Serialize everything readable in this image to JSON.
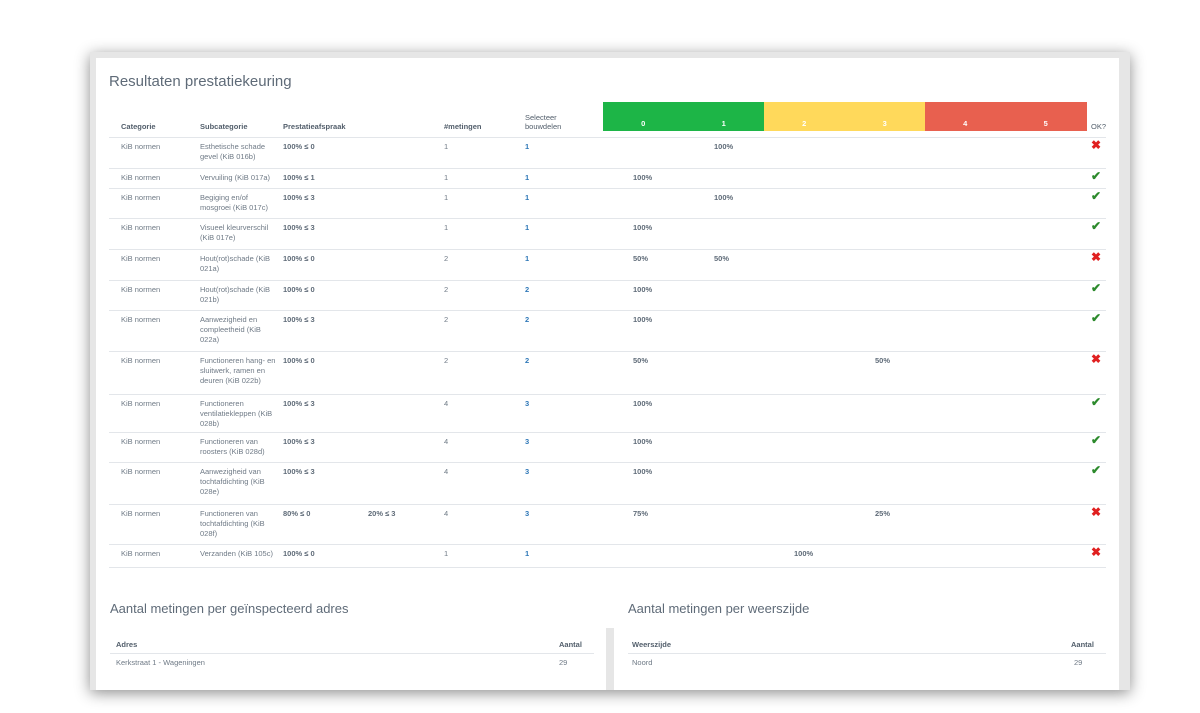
{
  "main": {
    "title": "Resultaten prestatiekeuring",
    "headers": {
      "categorie": "Categorie",
      "subcategorie": "Subcategorie",
      "prestatieafspraak": "Prestatieafspraak",
      "metingen": "#metingen",
      "selecteer_1": "Selecteer",
      "selecteer_2": "bouwdelen",
      "ok": "OK?"
    },
    "scores": [
      {
        "label": "0",
        "color": "#1db547"
      },
      {
        "label": "1",
        "color": "#1db547"
      },
      {
        "label": "2",
        "color": "#ffd95b"
      },
      {
        "label": "3",
        "color": "#ffd95b"
      },
      {
        "label": "4",
        "color": "#e8604f"
      },
      {
        "label": "5",
        "color": "#e8604f"
      }
    ],
    "rows": [
      {
        "categorie": "KiB normen",
        "subcategorie": "Esthetische schade gevel (KiB 016b)",
        "afspraak_1": "100% ≤ 0",
        "afspraak_2": "",
        "metingen": "1",
        "bouwdelen": "1",
        "pct": [
          "",
          "100%",
          "",
          "",
          "",
          ""
        ],
        "ok": false
      },
      {
        "categorie": "KiB normen",
        "subcategorie": "Vervuiling (KiB 017a)",
        "afspraak_1": "100% ≤ 1",
        "afspraak_2": "",
        "metingen": "1",
        "bouwdelen": "1",
        "pct": [
          "100%",
          "",
          "",
          "",
          "",
          ""
        ],
        "ok": true
      },
      {
        "categorie": "KiB normen",
        "subcategorie": "Begiging en/of mosgroei (KiB 017c)",
        "afspraak_1": "100% ≤ 3",
        "afspraak_2": "",
        "metingen": "1",
        "bouwdelen": "1",
        "pct": [
          "",
          "100%",
          "",
          "",
          "",
          ""
        ],
        "ok": true
      },
      {
        "categorie": "KiB normen",
        "subcategorie": "Visueel kleurverschil (KiB 017e)",
        "afspraak_1": "100% ≤ 3",
        "afspraak_2": "",
        "metingen": "1",
        "bouwdelen": "1",
        "pct": [
          "100%",
          "",
          "",
          "",
          "",
          ""
        ],
        "ok": true
      },
      {
        "categorie": "KiB normen",
        "subcategorie": "Hout(rot)schade (KiB 021a)",
        "afspraak_1": "100% ≤ 0",
        "afspraak_2": "",
        "metingen": "2",
        "bouwdelen": "1",
        "pct": [
          "50%",
          "50%",
          "",
          "",
          "",
          ""
        ],
        "ok": false
      },
      {
        "categorie": "KiB normen",
        "subcategorie": "Hout(rot)schade (KiB 021b)",
        "afspraak_1": "100% ≤ 0",
        "afspraak_2": "",
        "metingen": "2",
        "bouwdelen": "2",
        "pct": [
          "100%",
          "",
          "",
          "",
          "",
          ""
        ],
        "ok": true
      },
      {
        "categorie": "KiB normen",
        "subcategorie": "Aanwezigheid en compleetheid (KiB 022a)",
        "afspraak_1": "100% ≤ 3",
        "afspraak_2": "",
        "metingen": "2",
        "bouwdelen": "2",
        "pct": [
          "100%",
          "",
          "",
          "",
          "",
          ""
        ],
        "ok": true
      },
      {
        "categorie": "KiB normen",
        "subcategorie": "Functioneren hang- en sluitwerk, ramen en deuren (KiB 022b)",
        "afspraak_1": "100% ≤ 0",
        "afspraak_2": "",
        "metingen": "2",
        "bouwdelen": "2",
        "pct": [
          "50%",
          "",
          "",
          "50%",
          "",
          ""
        ],
        "ok": false
      },
      {
        "categorie": "KiB normen",
        "subcategorie": "Functioneren ventilatiekleppen (KiB 028b)",
        "afspraak_1": "100% ≤ 3",
        "afspraak_2": "",
        "metingen": "4",
        "bouwdelen": "3",
        "pct": [
          "100%",
          "",
          "",
          "",
          "",
          ""
        ],
        "ok": true
      },
      {
        "categorie": "KiB normen",
        "subcategorie": "Functioneren van roosters (KiB 028d)",
        "afspraak_1": "100% ≤ 3",
        "afspraak_2": "",
        "metingen": "4",
        "bouwdelen": "3",
        "pct": [
          "100%",
          "",
          "",
          "",
          "",
          ""
        ],
        "ok": true
      },
      {
        "categorie": "KiB normen",
        "subcategorie": "Aanwezigheid van tochtafdichting (KiB 028e)",
        "afspraak_1": "100% ≤ 3",
        "afspraak_2": "",
        "metingen": "4",
        "bouwdelen": "3",
        "pct": [
          "100%",
          "",
          "",
          "",
          "",
          ""
        ],
        "ok": true
      },
      {
        "categorie": "KiB normen",
        "subcategorie": "Functioneren van tochtafdichting (KiB 028f)",
        "afspraak_1": "80% ≤ 0",
        "afspraak_2": "20% ≤ 3",
        "metingen": "4",
        "bouwdelen": "3",
        "pct": [
          "75%",
          "",
          "",
          "25%",
          "",
          ""
        ],
        "ok": false
      },
      {
        "categorie": "KiB normen",
        "subcategorie": "Verzanden (KiB 105c)",
        "afspraak_1": "100% ≤ 0",
        "afspraak_2": "",
        "metingen": "1",
        "bouwdelen": "1",
        "pct": [
          "",
          "",
          "100%",
          "",
          "",
          ""
        ],
        "ok": false
      }
    ]
  },
  "adres_panel": {
    "title": "Aantal metingen per geïnspecteerd adres",
    "col_1": "Adres",
    "col_2": "Aantal",
    "rows": [
      {
        "name": "Kerkstraat 1 - Wageningen",
        "aantal": "29"
      }
    ]
  },
  "weerszijde_panel": {
    "title": "Aantal metingen per weerszijde",
    "col_1": "Weerszijde",
    "col_2": "Aantal",
    "rows": [
      {
        "name": "Noord",
        "aantal": "29"
      }
    ]
  }
}
